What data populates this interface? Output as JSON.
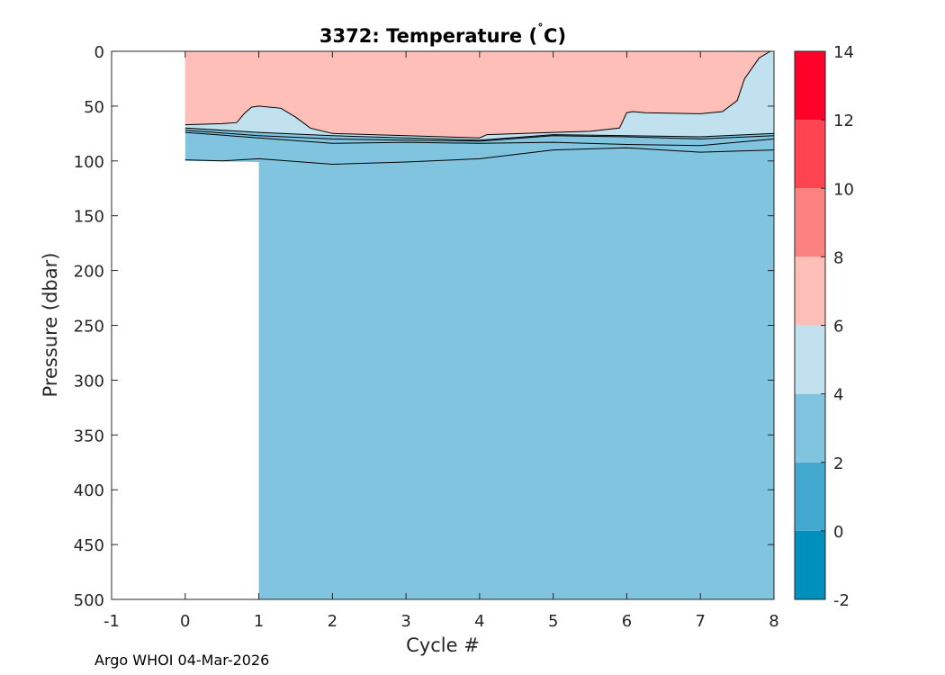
{
  "chart_data": {
    "type": "heatmap",
    "subtype": "filled-contour",
    "title_main": "3372:  Temperature (",
    "title_degree": "˚",
    "title_unit": "C)",
    "xlabel": "Cycle #",
    "ylabel": "Pressure (dbar)",
    "xlim": [
      -1,
      8
    ],
    "ylim": [
      0,
      500
    ],
    "y_reversed": true,
    "x_ticks": [
      "-1",
      "0",
      "1",
      "2",
      "3",
      "4",
      "5",
      "6",
      "7",
      "8"
    ],
    "y_ticks": [
      "0",
      "50",
      "100",
      "150",
      "200",
      "250",
      "300",
      "350",
      "400",
      "450",
      "500"
    ],
    "colorbar": {
      "ticks": [
        "-2",
        "0",
        "2",
        "4",
        "6",
        "8",
        "10",
        "12",
        "14"
      ],
      "levels": [
        -2,
        0,
        2,
        4,
        6,
        8,
        10,
        12,
        14
      ],
      "colors": [
        "#0090bc",
        "#43a9cf",
        "#80c4df",
        "#c0e1ed",
        "#fdbfb8",
        "#fb8280",
        "#fd4450",
        "#fe0229"
      ]
    },
    "regions": {
      "data_extent": [
        [
          0,
          0
        ],
        [
          8,
          0
        ],
        [
          8,
          500
        ],
        [
          1,
          500
        ],
        [
          1,
          101
        ],
        [
          0,
          100
        ]
      ],
      "warm_layer_6_8": {
        "color": "#fdbfb8",
        "lower_boundary": [
          [
            0,
            67
          ],
          [
            0.5,
            66
          ],
          [
            0.7,
            65
          ],
          [
            0.8,
            57
          ],
          [
            0.9,
            51
          ],
          [
            1.0,
            50
          ],
          [
            1.3,
            52
          ],
          [
            1.5,
            60
          ],
          [
            1.7,
            70
          ],
          [
            2,
            75
          ],
          [
            3,
            77
          ],
          [
            4,
            79
          ],
          [
            4.1,
            76
          ],
          [
            5,
            74
          ],
          [
            5.5,
            73
          ],
          [
            5.9,
            70
          ],
          [
            6,
            56
          ],
          [
            6.08,
            55
          ],
          [
            6.25,
            56
          ],
          [
            7,
            57
          ],
          [
            7.3,
            55
          ],
          [
            7.5,
            45
          ],
          [
            7.6,
            25
          ],
          [
            7.8,
            6
          ],
          [
            7.95,
            0
          ]
        ]
      },
      "layer_4_6": {
        "color": "#c0e1ed",
        "lower_boundary": [
          [
            0,
            70
          ],
          [
            1,
            74
          ],
          [
            2,
            77
          ],
          [
            3,
            79
          ],
          [
            4,
            81
          ],
          [
            5,
            76
          ],
          [
            6,
            77
          ],
          [
            7,
            78
          ],
          [
            8,
            75
          ]
        ]
      },
      "contour_lines": [
        [
          [
            0,
            72
          ],
          [
            1,
            77
          ],
          [
            2,
            80
          ],
          [
            3,
            81
          ],
          [
            4,
            82
          ],
          [
            5,
            77
          ],
          [
            6,
            78
          ],
          [
            7,
            80
          ],
          [
            8,
            77
          ]
        ],
        [
          [
            0,
            74
          ],
          [
            1,
            79
          ],
          [
            2,
            84
          ],
          [
            3,
            83
          ],
          [
            4,
            84
          ],
          [
            5,
            83
          ],
          [
            6,
            85
          ],
          [
            7,
            86
          ],
          [
            8,
            80
          ]
        ],
        [
          [
            0,
            99
          ],
          [
            0.5,
            100
          ],
          [
            1,
            98
          ],
          [
            2,
            103
          ],
          [
            3,
            101
          ],
          [
            4,
            98
          ],
          [
            5,
            90
          ],
          [
            6,
            88
          ],
          [
            7,
            92
          ],
          [
            8,
            90
          ]
        ]
      ],
      "deep_layer_2_4": {
        "color": "#80c4df"
      }
    }
  },
  "footer": {
    "credit": "Argo WHOI 04-Mar-2026"
  }
}
